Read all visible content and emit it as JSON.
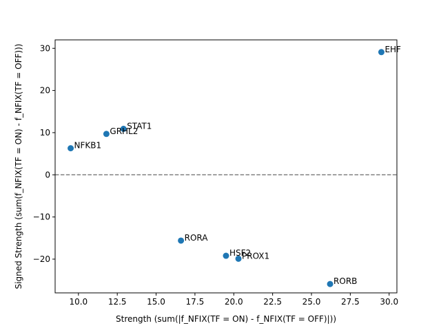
{
  "chart_data": {
    "type": "scatter",
    "title": "",
    "xlabel": "Strength (sum(|f_NFIX(TF = ON) - f_NFIX(TF = OFF)|))",
    "ylabel": "Signed Strength (sum(f_NFIX(TF = ON) - f_NFIX(TF = OFF)))",
    "xlim": [
      8.5,
      30.5
    ],
    "ylim": [
      -28.0,
      32.0
    ],
    "xticks": [
      "10.0",
      "12.5",
      "15.0",
      "17.5",
      "20.0",
      "22.5",
      "25.0",
      "27.5",
      "30.0"
    ],
    "yticks": [
      "−20",
      "−10",
      "0",
      "10",
      "20",
      "30"
    ],
    "grid": false,
    "reference_line": {
      "y": 0,
      "style": "dashed",
      "color": "#808080"
    },
    "point_color": "#1f77b4",
    "points": [
      {
        "label": "EHF",
        "x": 29.5,
        "y": 29.1
      },
      {
        "label": "STAT1",
        "x": 12.9,
        "y": 10.9
      },
      {
        "label": "GRHL2",
        "x": 11.8,
        "y": 9.7
      },
      {
        "label": "NFKB1",
        "x": 9.5,
        "y": 6.3
      },
      {
        "label": "RORA",
        "x": 16.6,
        "y": -15.6
      },
      {
        "label": "HSF2",
        "x": 19.5,
        "y": -19.2
      },
      {
        "label": "PROX1",
        "x": 20.3,
        "y": -19.9
      },
      {
        "label": "RORB",
        "x": 26.2,
        "y": -25.9
      }
    ]
  }
}
